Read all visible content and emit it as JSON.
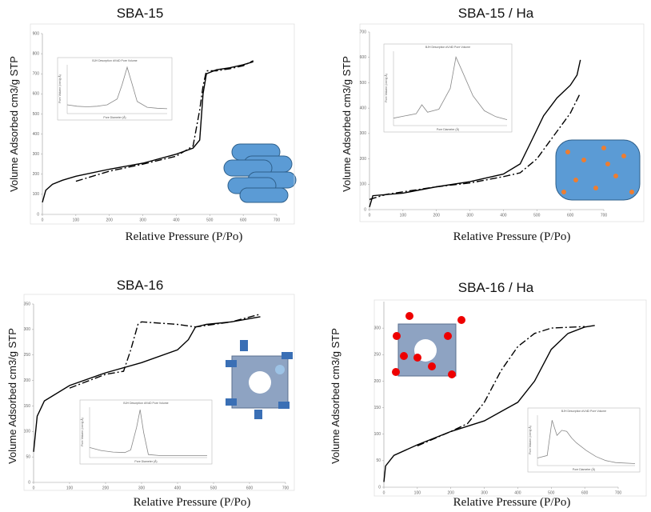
{
  "chart_data": [
    {
      "type": "line",
      "title": "SBA-15",
      "xlabel": "Relative  Pressure (P/Po)",
      "ylabel": "Volume Adsorbed cm3/g STP",
      "xlim": [
        0,
        700
      ],
      "ylim": [
        0,
        900
      ],
      "xticks": [
        0,
        100,
        200,
        300,
        400,
        500,
        600,
        700
      ],
      "yticks": [
        0,
        100,
        200,
        300,
        400,
        500,
        600,
        700,
        800,
        900
      ],
      "series": [
        {
          "style": "solid",
          "color": "#000000",
          "x": [
            0,
            10,
            30,
            60,
            100,
            200,
            300,
            400,
            450,
            470,
            480,
            490,
            520,
            560,
            600,
            630
          ],
          "values": [
            60,
            120,
            150,
            170,
            190,
            225,
            255,
            300,
            330,
            370,
            600,
            700,
            720,
            730,
            745,
            760
          ]
        },
        {
          "style": "dash-dot",
          "color": "#000000",
          "x": [
            100,
            200,
            300,
            400,
            450,
            470,
            480,
            490,
            520,
            560,
            600,
            630
          ],
          "values": [
            165,
            215,
            250,
            290,
            340,
            520,
            640,
            715,
            715,
            725,
            740,
            765
          ]
        }
      ],
      "inset": {
        "title": "BJH Desorption dV/dD Pore Volume",
        "xlabel": "Pore Diameter (Å)",
        "ylabel": "Pore Volume (cm³/g·Å)",
        "color": "#888888",
        "xlim": [
          0,
          10
        ],
        "ylim": [
          0,
          10
        ],
        "x": [
          0,
          1,
          2,
          3,
          4,
          5,
          5.5,
          6,
          6.5,
          7,
          8,
          9,
          10
        ],
        "values": [
          1.8,
          1.5,
          1.4,
          1.5,
          1.8,
          3,
          6,
          9.5,
          6,
          2.5,
          1.3,
          1.1,
          1
        ]
      }
    },
    {
      "type": "line",
      "title": "SBA-15 / Ha",
      "xlabel": "Relative  Pressure (P/Po)",
      "ylabel": "Volume Adsorbed cm3/g STP",
      "xlim": [
        0,
        700
      ],
      "ylim": [
        0,
        700
      ],
      "xticks": [
        0,
        100,
        200,
        300,
        400,
        500,
        600,
        700
      ],
      "yticks": [
        0,
        100,
        200,
        300,
        400,
        500,
        600,
        700
      ],
      "series": [
        {
          "style": "solid",
          "color": "#000000",
          "x": [
            0,
            10,
            100,
            200,
            300,
            400,
            450,
            480,
            520,
            560,
            600,
            620,
            630
          ],
          "values": [
            10,
            55,
            65,
            90,
            110,
            140,
            180,
            260,
            370,
            440,
            490,
            530,
            590
          ]
        },
        {
          "style": "dash-dot",
          "color": "#000000",
          "x": [
            0,
            50,
            100,
            200,
            300,
            400,
            450,
            500,
            550,
            600,
            630
          ],
          "values": [
            40,
            60,
            70,
            90,
            105,
            130,
            145,
            200,
            290,
            380,
            460
          ]
        }
      ],
      "inset": {
        "title": "BJH Desorption dV/dD Pore Volume",
        "xlabel": "Pore Diameter (Å)",
        "ylabel": "Pore Volume (cm³/g·Å)",
        "color": "#888888",
        "xlim": [
          0,
          10
        ],
        "ylim": [
          0,
          10
        ],
        "x": [
          0,
          1,
          2,
          2.5,
          3,
          4,
          5,
          5.5,
          6,
          7,
          8,
          9,
          10
        ],
        "values": [
          1,
          1.3,
          1.6,
          2.8,
          1.8,
          2.2,
          5,
          9.2,
          7.5,
          4,
          2,
          1.2,
          0.8
        ]
      }
    },
    {
      "type": "line",
      "title": "SBA-16",
      "xlabel": "Relative  Pressure (P/Po)",
      "ylabel": "Volume Adsorbed cm3/g STP",
      "xlim": [
        0,
        700
      ],
      "ylim": [
        0,
        350
      ],
      "xticks": [
        0,
        100,
        200,
        300,
        400,
        500,
        600,
        700
      ],
      "yticks": [
        0,
        50,
        100,
        150,
        200,
        250,
        300,
        350
      ],
      "series": [
        {
          "style": "solid",
          "color": "#000000",
          "x": [
            0,
            10,
            30,
            100,
            200,
            300,
            400,
            430,
            450,
            480,
            550,
            630
          ],
          "values": [
            60,
            130,
            160,
            190,
            215,
            235,
            260,
            280,
            305,
            310,
            315,
            325
          ]
        },
        {
          "style": "dash-dot",
          "color": "#000000",
          "x": [
            100,
            200,
            250,
            270,
            290,
            300,
            400,
            450,
            550,
            630
          ],
          "values": [
            185,
            212,
            218,
            260,
            310,
            315,
            310,
            305,
            315,
            330
          ]
        }
      ],
      "inset": {
        "title": "BJH Desorption dV/dD Pore Volume",
        "xlabel": "Pore Diameter (Å)",
        "ylabel": "Pore Volume (cm³/g·Å)",
        "color": "#888888",
        "xlim": [
          0,
          10
        ],
        "ylim": [
          0,
          10
        ],
        "x": [
          0,
          1,
          2,
          3,
          3.5,
          4,
          4.3,
          4.6,
          5,
          6,
          7,
          8,
          10
        ],
        "values": [
          2,
          1.4,
          1.1,
          1,
          1.5,
          6,
          9.5,
          5,
          0.6,
          0.4,
          0.4,
          0.4,
          0.4
        ]
      }
    },
    {
      "type": "line",
      "title": "SBA-16 / Ha",
      "xlabel": "Relative  Pressure (P/Po)",
      "ylabel": "Volume Adsorbed cm3/g STP",
      "xlim": [
        0,
        700
      ],
      "ylim": [
        0,
        350
      ],
      "xticks": [
        0,
        100,
        200,
        300,
        400,
        500,
        600,
        700
      ],
      "yticks": [
        0,
        50,
        100,
        150,
        200,
        250,
        300
      ],
      "series": [
        {
          "style": "solid",
          "color": "#000000",
          "x": [
            0,
            5,
            30,
            100,
            200,
            300,
            400,
            450,
            500,
            550,
            600,
            630
          ],
          "values": [
            10,
            40,
            60,
            80,
            105,
            125,
            160,
            200,
            260,
            290,
            302,
            305
          ]
        },
        {
          "style": "dash-dot",
          "color": "#000000",
          "x": [
            100,
            200,
            250,
            300,
            350,
            400,
            450,
            500,
            600
          ],
          "values": [
            78,
            105,
            120,
            160,
            220,
            265,
            290,
            300,
            303
          ]
        }
      ],
      "inset": {
        "title": "BJH Desorption dV/dD Pore Volume",
        "xlabel": "Pore Diameter (Å)",
        "ylabel": "Pore Volume (cm³/g·Å)",
        "color": "#888888",
        "xlim": [
          0,
          10
        ],
        "ylim": [
          0,
          10
        ],
        "x": [
          0,
          1,
          1.5,
          2,
          2.5,
          3,
          3.5,
          4,
          5,
          6,
          7,
          8,
          10
        ],
        "values": [
          1.5,
          2,
          9,
          6,
          7,
          6.8,
          5.5,
          4.5,
          3,
          1.8,
          1,
          0.6,
          0.4
        ]
      }
    }
  ]
}
